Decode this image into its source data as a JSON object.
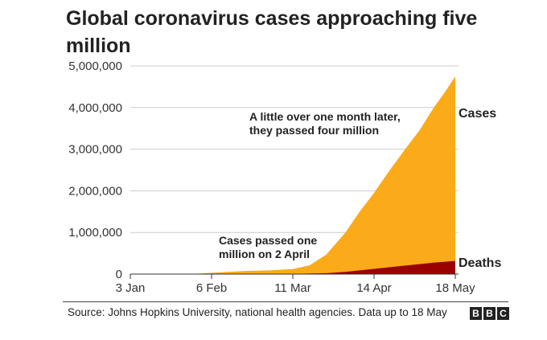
{
  "chart_data": {
    "type": "area",
    "title": "Global coronavirus cases approaching five million",
    "xlabel": "",
    "ylabel": "",
    "ylim": [
      0,
      5000000
    ],
    "y_ticks": [
      0,
      1000000,
      2000000,
      3000000,
      4000000,
      5000000
    ],
    "y_tick_labels": [
      "0",
      "1,000,000",
      "2,000,000",
      "3,000,000",
      "4,000,000",
      "5,000,000"
    ],
    "x_tick_labels": [
      "3 Jan",
      "6 Feb",
      "11 Mar",
      "14 Apr",
      "18 May"
    ],
    "x_tick_dates": [
      "2020-01-03",
      "2020-02-06",
      "2020-03-11",
      "2020-04-14",
      "2020-05-18"
    ],
    "grid": true,
    "series": [
      {
        "name": "Cases",
        "color": "#fbaa19",
        "points": [
          [
            "2020-01-03",
            0
          ],
          [
            "2020-01-22",
            600
          ],
          [
            "2020-02-01",
            12000
          ],
          [
            "2020-02-06",
            30000
          ],
          [
            "2020-02-20",
            76000
          ],
          [
            "2020-03-01",
            88000
          ],
          [
            "2020-03-11",
            120000
          ],
          [
            "2020-03-18",
            210000
          ],
          [
            "2020-03-25",
            470000
          ],
          [
            "2020-04-02",
            1000000
          ],
          [
            "2020-04-08",
            1500000
          ],
          [
            "2020-04-14",
            1950000
          ],
          [
            "2020-04-20",
            2450000
          ],
          [
            "2020-04-27",
            3000000
          ],
          [
            "2020-05-03",
            3450000
          ],
          [
            "2020-05-09",
            4000000
          ],
          [
            "2020-05-14",
            4400000
          ],
          [
            "2020-05-18",
            4750000
          ]
        ]
      },
      {
        "name": "Deaths",
        "color": "#990000",
        "points": [
          [
            "2020-01-03",
            0
          ],
          [
            "2020-02-06",
            600
          ],
          [
            "2020-03-11",
            4500
          ],
          [
            "2020-03-25",
            22000
          ],
          [
            "2020-04-02",
            52000
          ],
          [
            "2020-04-14",
            125000
          ],
          [
            "2020-04-27",
            205000
          ],
          [
            "2020-05-09",
            275000
          ],
          [
            "2020-05-18",
            317000
          ]
        ]
      }
    ],
    "annotations": [
      {
        "lines": [
          "A little over one month later,",
          "they passed four million"
        ]
      },
      {
        "lines": [
          "Cases passed one",
          "million on 2 April"
        ]
      }
    ]
  },
  "footer": {
    "source": "Source: Johns Hopkins University, national health agencies. Data up to 18 May",
    "logo_letters": [
      "B",
      "B",
      "C"
    ]
  }
}
